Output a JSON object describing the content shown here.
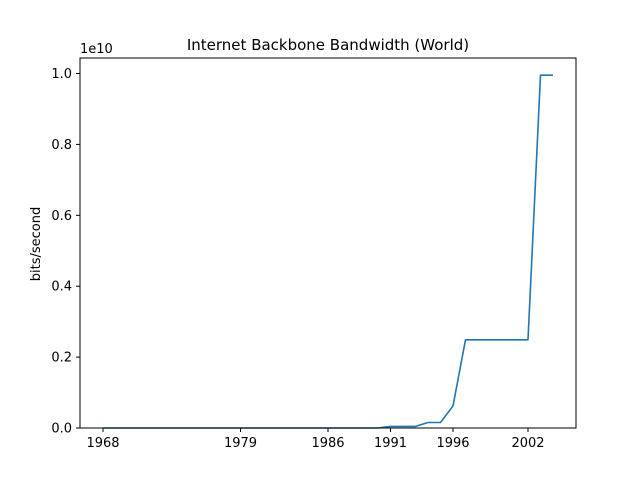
{
  "chart_data": {
    "type": "line",
    "title": "Internet Backbone Bandwidth (World)",
    "xlabel": "",
    "ylabel": "bits/second",
    "y_offset_label": "1e10",
    "x_tick_labels": [
      "1968",
      "1979",
      "1986",
      "1991",
      "1996",
      "2002"
    ],
    "y_tick_labels": [
      "0.0",
      "0.2",
      "0.4",
      "0.6",
      "0.8",
      "1.0"
    ],
    "ylim": [
      0,
      10000000000.0
    ],
    "grid": false,
    "series": [
      {
        "color": "#1f77b4",
        "points": [
          {
            "x": "1968",
            "y": 0
          },
          {
            "x": "1979",
            "y": 0
          },
          {
            "x": "1986",
            "y": 0
          },
          {
            "x": "1990",
            "y": 0
          },
          {
            "x": "1991",
            "y": 45000000
          },
          {
            "x": "1993",
            "y": 45000000
          },
          {
            "x": "1994",
            "y": 155000000
          },
          {
            "x": "1995",
            "y": 155000000
          },
          {
            "x": "1996",
            "y": 622000000
          },
          {
            "x": "1997",
            "y": 2488000000
          },
          {
            "x": "2001",
            "y": 2488000000
          },
          {
            "x": "2002",
            "y": 2488000000
          },
          {
            "x": "2003",
            "y": 9953000000
          },
          {
            "x": "2004",
            "y": 9953000000
          }
        ]
      }
    ]
  }
}
